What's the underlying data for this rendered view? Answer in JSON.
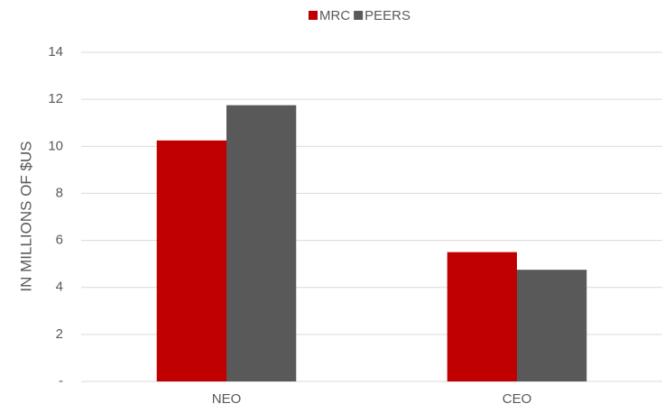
{
  "chart_data": {
    "type": "bar",
    "y_label": "IN MILLIONS OF $US",
    "categories": [
      "NEO",
      "CEO"
    ],
    "series": [
      {
        "name": "MRC",
        "color": "#c00000",
        "values": [
          10.25,
          5.5
        ]
      },
      {
        "name": "PEERS",
        "color": "#595959",
        "values": [
          11.75,
          4.75
        ]
      }
    ],
    "ylim": [
      0,
      14
    ],
    "yticks": [
      {
        "value": 0,
        "label": "-"
      },
      2,
      4,
      6,
      8,
      10,
      12,
      14
    ],
    "grid": true,
    "legend": "top"
  }
}
